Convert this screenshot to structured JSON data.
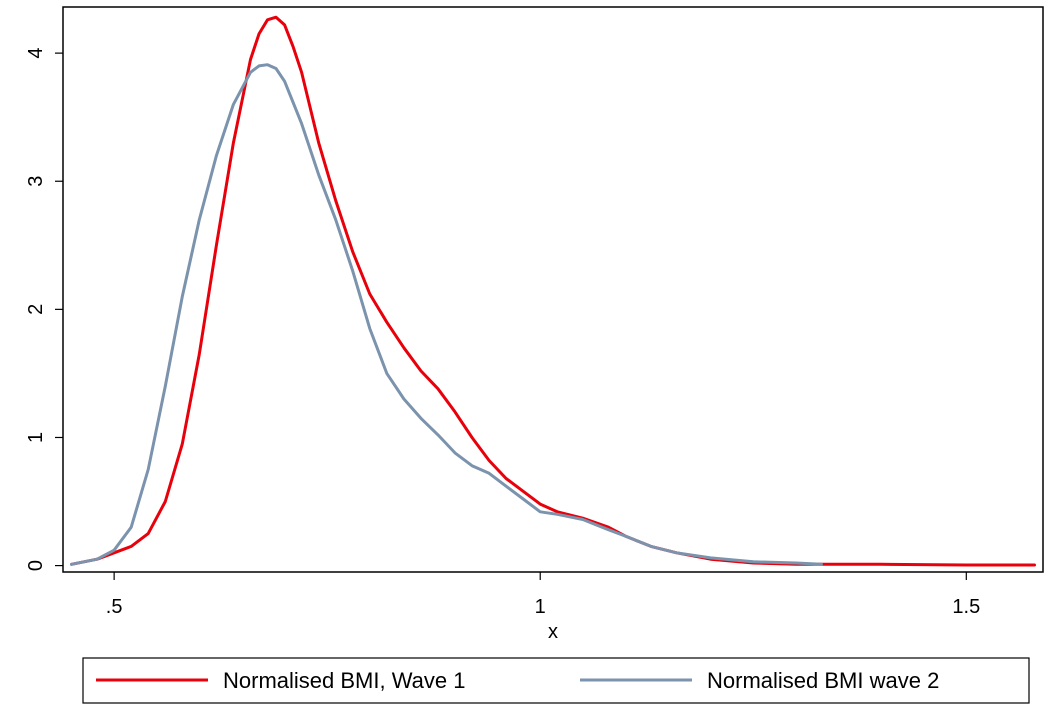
{
  "chart_data": {
    "type": "line",
    "title": "",
    "xlabel": "x",
    "ylabel": "",
    "xlim": [
      0.44,
      1.59
    ],
    "ylim": [
      -0.05,
      4.36
    ],
    "x_ticks": [
      {
        "value": 0.5,
        "label": ".5"
      },
      {
        "value": 1.0,
        "label": "1"
      },
      {
        "value": 1.5,
        "label": "1.5"
      }
    ],
    "y_ticks": [
      {
        "value": 0,
        "label": "0"
      },
      {
        "value": 1,
        "label": "1"
      },
      {
        "value": 2,
        "label": "2"
      },
      {
        "value": 3,
        "label": "3"
      },
      {
        "value": 4,
        "label": "4"
      }
    ],
    "grid": false,
    "legend_position": "bottom",
    "series": [
      {
        "name": "Normalised BMI, Wave 1",
        "color": "#e8000b",
        "x": [
          0.45,
          0.48,
          0.5,
          0.52,
          0.54,
          0.56,
          0.58,
          0.6,
          0.62,
          0.64,
          0.66,
          0.67,
          0.68,
          0.69,
          0.7,
          0.71,
          0.72,
          0.74,
          0.76,
          0.78,
          0.8,
          0.82,
          0.84,
          0.86,
          0.88,
          0.9,
          0.92,
          0.94,
          0.96,
          0.98,
          1.0,
          1.02,
          1.05,
          1.08,
          1.1,
          1.13,
          1.16,
          1.2,
          1.25,
          1.3,
          1.4,
          1.5,
          1.58
        ],
        "values": [
          0.01,
          0.05,
          0.1,
          0.15,
          0.25,
          0.5,
          0.95,
          1.65,
          2.5,
          3.3,
          3.95,
          4.15,
          4.26,
          4.28,
          4.22,
          4.05,
          3.85,
          3.3,
          2.85,
          2.45,
          2.12,
          1.9,
          1.7,
          1.52,
          1.38,
          1.2,
          1.0,
          0.82,
          0.68,
          0.58,
          0.48,
          0.42,
          0.37,
          0.3,
          0.23,
          0.15,
          0.1,
          0.05,
          0.02,
          0.01,
          0.01,
          0.005,
          0.005
        ]
      },
      {
        "name": "Normalised BMI wave 2",
        "color": "#7b93ad",
        "x": [
          0.45,
          0.48,
          0.5,
          0.52,
          0.54,
          0.56,
          0.58,
          0.6,
          0.62,
          0.64,
          0.66,
          0.67,
          0.68,
          0.69,
          0.7,
          0.72,
          0.74,
          0.76,
          0.78,
          0.8,
          0.82,
          0.84,
          0.86,
          0.88,
          0.9,
          0.92,
          0.94,
          0.96,
          0.98,
          1.0,
          1.02,
          1.05,
          1.08,
          1.1,
          1.13,
          1.16,
          1.2,
          1.25,
          1.3,
          1.33
        ],
        "values": [
          0.01,
          0.05,
          0.12,
          0.3,
          0.75,
          1.4,
          2.1,
          2.7,
          3.2,
          3.6,
          3.85,
          3.9,
          3.91,
          3.88,
          3.78,
          3.45,
          3.05,
          2.7,
          2.3,
          1.85,
          1.5,
          1.3,
          1.15,
          1.02,
          0.88,
          0.78,
          0.72,
          0.62,
          0.52,
          0.42,
          0.4,
          0.36,
          0.28,
          0.23,
          0.15,
          0.1,
          0.06,
          0.03,
          0.02,
          0.01
        ]
      }
    ]
  }
}
